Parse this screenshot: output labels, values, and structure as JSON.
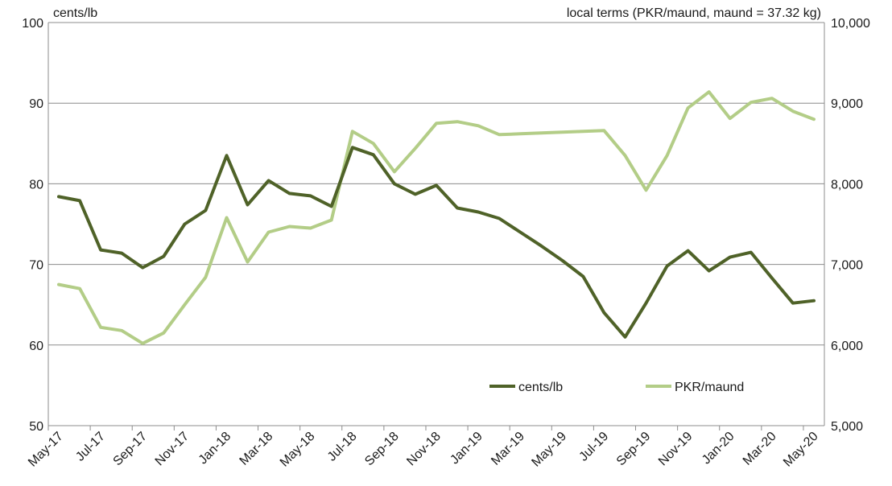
{
  "chart_data": {
    "type": "line",
    "left_unit_label": "cents/lb",
    "right_unit_label": "local terms (PKR/maund, maund = 37.32 kg)",
    "x": [
      "May-17",
      "Jun-17",
      "Jul-17",
      "Aug-17",
      "Sep-17",
      "Oct-17",
      "Nov-17",
      "Dec-17",
      "Jan-18",
      "Feb-18",
      "Mar-18",
      "Apr-18",
      "May-18",
      "Jun-18",
      "Jul-18",
      "Aug-18",
      "Sep-18",
      "Oct-18",
      "Nov-18",
      "Dec-18",
      "Jan-19",
      "Feb-19",
      "Mar-19",
      "Apr-19",
      "May-19",
      "Jun-19",
      "Jul-19",
      "Aug-19",
      "Sep-19",
      "Oct-19",
      "Nov-19",
      "Dec-19",
      "Jan-20",
      "Feb-20",
      "Mar-20",
      "Apr-20",
      "May-20"
    ],
    "x_tick_labels": [
      "May-17",
      "Jul-17",
      "Sep-17",
      "Nov-17",
      "Jan-18",
      "Mar-18",
      "May-18",
      "Jul-18",
      "Sep-18",
      "Nov-18",
      "Jan-19",
      "Mar-19",
      "May-19",
      "Jul-19",
      "Sep-19",
      "Nov-19",
      "Jan-20",
      "Mar-20",
      "May-20"
    ],
    "y_left": {
      "range": [
        50,
        100
      ],
      "ticks": [
        "50",
        "60",
        "70",
        "80",
        "90",
        "100"
      ]
    },
    "y_right": {
      "range": [
        5000,
        10000
      ],
      "ticks": [
        "5,000",
        "6,000",
        "7,000",
        "8,000",
        "9,000",
        "10,000"
      ]
    },
    "grid": true,
    "legend_position": "bottom-right",
    "series": [
      {
        "name": "cents/lb",
        "axis": "left",
        "color": "#4f6228",
        "values": [
          78.4,
          77.9,
          71.8,
          71.4,
          69.6,
          71.0,
          75.0,
          76.7,
          83.5,
          77.4,
          80.4,
          78.8,
          78.5,
          77.2,
          84.5,
          83.6,
          80.0,
          78.7,
          79.8,
          77.0,
          76.5,
          75.7,
          74.0,
          72.3,
          70.5,
          68.5,
          64.0,
          61.0,
          65.2,
          69.8,
          71.7,
          69.2,
          70.9,
          71.5,
          68.3,
          65.2,
          65.5
        ]
      },
      {
        "name": "PKR/maund",
        "axis": "right",
        "color": "#b3cd87",
        "values": [
          6750,
          6700,
          6220,
          6180,
          6020,
          6150,
          6500,
          6840,
          7580,
          7030,
          7400,
          7470,
          7450,
          7550,
          8650,
          8500,
          8150,
          8440,
          8750,
          8770,
          8720,
          8610,
          8620,
          8630,
          8640,
          8650,
          8660,
          8350,
          7920,
          8350,
          8940,
          9140,
          8810,
          9010,
          9060,
          8900,
          8800
        ]
      }
    ]
  }
}
